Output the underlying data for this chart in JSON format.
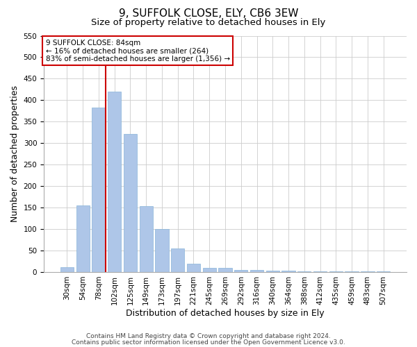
{
  "title1": "9, SUFFOLK CLOSE, ELY, CB6 3EW",
  "title2": "Size of property relative to detached houses in Ely",
  "xlabel": "Distribution of detached houses by size in Ely",
  "ylabel": "Number of detached properties",
  "categories": [
    "30sqm",
    "54sqm",
    "78sqm",
    "102sqm",
    "125sqm",
    "149sqm",
    "173sqm",
    "197sqm",
    "221sqm",
    "245sqm",
    "269sqm",
    "292sqm",
    "316sqm",
    "340sqm",
    "364sqm",
    "388sqm",
    "412sqm",
    "435sqm",
    "459sqm",
    "483sqm",
    "507sqm"
  ],
  "values": [
    12,
    155,
    382,
    420,
    322,
    153,
    100,
    55,
    20,
    10,
    10,
    5,
    5,
    3,
    3,
    2,
    1,
    1,
    1,
    1,
    1
  ],
  "bar_color": "#aec6e8",
  "bar_edge_color": "#88b4d8",
  "ylim": [
    0,
    550
  ],
  "yticks": [
    0,
    50,
    100,
    150,
    200,
    250,
    300,
    350,
    400,
    450,
    500,
    550
  ],
  "grid_color": "#cccccc",
  "red_line_x": 2.43,
  "annotation_text": "9 SUFFOLK CLOSE: 84sqm\n← 16% of detached houses are smaller (264)\n83% of semi-detached houses are larger (1,356) →",
  "annotation_box_color": "#ffffff",
  "annotation_border_color": "#cc0000",
  "footer1": "Contains HM Land Registry data © Crown copyright and database right 2024.",
  "footer2": "Contains public sector information licensed under the Open Government Licence v3.0.",
  "background_color": "#ffffff",
  "title1_fontsize": 11,
  "title2_fontsize": 9.5,
  "axis_label_fontsize": 9,
  "tick_fontsize": 7.5,
  "annotation_fontsize": 7.5,
  "footer_fontsize": 6.5
}
